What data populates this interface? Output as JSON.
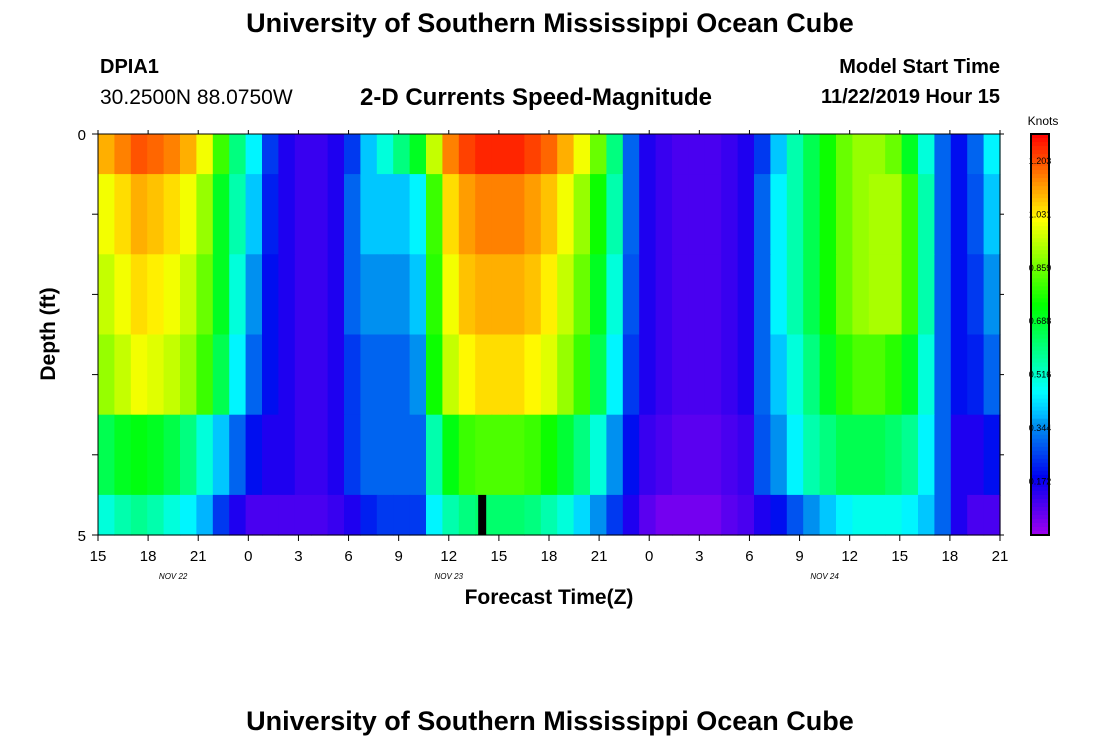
{
  "header": {
    "title": "University of Southern Mississippi Ocean Cube",
    "station_id": "DPIA1",
    "station_coords": "30.2500N 88.0750W",
    "start_label": "Model Start Time",
    "start_value": "11/22/2019 Hour 15"
  },
  "footer": {
    "title": "University of Southern Mississippi Ocean Cube"
  },
  "chart_data": {
    "type": "heatmap",
    "title": "2-D Currents Speed-Magnitude",
    "xlabel": "Forecast Time(Z)",
    "ylabel": "Depth (ft)",
    "xlim": [
      0,
      54
    ],
    "ylim": [
      0,
      5
    ],
    "x_tick_labels": [
      "15",
      "18",
      "21",
      "0",
      "3",
      "6",
      "9",
      "12",
      "15",
      "18",
      "21",
      "0",
      "3",
      "6",
      "9",
      "12",
      "15",
      "18",
      "21"
    ],
    "y_tick_labels": [
      "0",
      "5"
    ],
    "date_labels": [
      {
        "text": "NOV  22",
        "x": 4.5
      },
      {
        "text": "NOV  23",
        "x": 21
      },
      {
        "text": "NOV  24",
        "x": 43.5
      }
    ],
    "colorbar": {
      "unit": "Knots",
      "min": 0,
      "max": 1.29,
      "tick_labels": [
        "1.203",
        "1.031",
        "0.859",
        "0.688",
        "0.516",
        "0.344",
        "0.172"
      ],
      "tick_values": [
        1.203,
        1.031,
        0.859,
        0.688,
        0.516,
        0.344,
        0.172
      ]
    },
    "marker": {
      "x": 23,
      "depth_from": 4.5,
      "depth_to": 5
    },
    "depth_layers": [
      0.25,
      1,
      2,
      3,
      4,
      4.75
    ],
    "layer_bounds": [
      0,
      0.5,
      1.5,
      2.5,
      3.5,
      4.5,
      5
    ],
    "speed_rows": [
      [
        1.1,
        1.15,
        1.2,
        1.18,
        1.15,
        1.1,
        1.0,
        0.8,
        0.6,
        0.45,
        0.25,
        0.15,
        0.12,
        0.12,
        0.15,
        0.25,
        0.4,
        0.5,
        0.6,
        0.7,
        0.95,
        1.15,
        1.22,
        1.25,
        1.25,
        1.25,
        1.22,
        1.18,
        1.1,
        1.0,
        0.85,
        0.6,
        0.3,
        0.15,
        0.12,
        0.1,
        0.1,
        0.1,
        0.12,
        0.15,
        0.25,
        0.4,
        0.55,
        0.65,
        0.75,
        0.85,
        0.9,
        0.9,
        0.85,
        0.7,
        0.5,
        0.3,
        0.2,
        0.3,
        0.45
      ],
      [
        1.0,
        1.05,
        1.1,
        1.08,
        1.05,
        1.0,
        0.9,
        0.7,
        0.55,
        0.4,
        0.22,
        0.15,
        0.12,
        0.12,
        0.15,
        0.3,
        0.4,
        0.4,
        0.4,
        0.45,
        0.8,
        1.05,
        1.12,
        1.15,
        1.15,
        1.15,
        1.12,
        1.08,
        1.0,
        0.9,
        0.75,
        0.55,
        0.3,
        0.15,
        0.12,
        0.1,
        0.1,
        0.1,
        0.12,
        0.15,
        0.3,
        0.45,
        0.55,
        0.65,
        0.75,
        0.85,
        0.9,
        0.92,
        0.92,
        0.8,
        0.55,
        0.3,
        0.2,
        0.28,
        0.4
      ],
      [
        0.95,
        1.0,
        1.05,
        1.03,
        1.0,
        0.95,
        0.85,
        0.7,
        0.5,
        0.35,
        0.2,
        0.15,
        0.12,
        0.12,
        0.15,
        0.3,
        0.35,
        0.35,
        0.35,
        0.4,
        0.78,
        1.0,
        1.08,
        1.1,
        1.1,
        1.1,
        1.08,
        1.03,
        0.95,
        0.85,
        0.7,
        0.5,
        0.28,
        0.15,
        0.12,
        0.1,
        0.1,
        0.1,
        0.12,
        0.15,
        0.3,
        0.45,
        0.55,
        0.65,
        0.75,
        0.85,
        0.9,
        0.92,
        0.92,
        0.8,
        0.55,
        0.3,
        0.2,
        0.25,
        0.35
      ],
      [
        0.9,
        0.95,
        1.0,
        0.98,
        0.95,
        0.9,
        0.8,
        0.65,
        0.45,
        0.3,
        0.2,
        0.15,
        0.12,
        0.12,
        0.15,
        0.25,
        0.3,
        0.3,
        0.3,
        0.35,
        0.75,
        0.95,
        1.02,
        1.05,
        1.05,
        1.05,
        1.02,
        0.98,
        0.9,
        0.8,
        0.65,
        0.45,
        0.25,
        0.15,
        0.12,
        0.1,
        0.1,
        0.1,
        0.12,
        0.15,
        0.3,
        0.4,
        0.5,
        0.6,
        0.7,
        0.78,
        0.82,
        0.82,
        0.78,
        0.7,
        0.5,
        0.3,
        0.2,
        0.22,
        0.3
      ],
      [
        0.65,
        0.7,
        0.72,
        0.7,
        0.66,
        0.6,
        0.5,
        0.4,
        0.3,
        0.2,
        0.15,
        0.15,
        0.12,
        0.12,
        0.15,
        0.25,
        0.3,
        0.3,
        0.3,
        0.3,
        0.55,
        0.72,
        0.8,
        0.82,
        0.82,
        0.82,
        0.8,
        0.75,
        0.68,
        0.6,
        0.5,
        0.35,
        0.2,
        0.12,
        0.1,
        0.08,
        0.08,
        0.08,
        0.1,
        0.12,
        0.28,
        0.35,
        0.45,
        0.55,
        0.6,
        0.65,
        0.65,
        0.65,
        0.62,
        0.58,
        0.45,
        0.3,
        0.15,
        0.15,
        0.2
      ],
      [
        0.5,
        0.55,
        0.58,
        0.55,
        0.5,
        0.45,
        0.38,
        0.25,
        0.15,
        0.1,
        0.1,
        0.1,
        0.1,
        0.1,
        0.12,
        0.15,
        0.22,
        0.25,
        0.25,
        0.25,
        0.45,
        0.55,
        0.6,
        0.62,
        0.62,
        0.62,
        0.6,
        0.55,
        0.5,
        0.42,
        0.35,
        0.25,
        0.15,
        0.08,
        0.05,
        0.05,
        0.05,
        0.05,
        0.08,
        0.1,
        0.15,
        0.2,
        0.28,
        0.35,
        0.4,
        0.45,
        0.48,
        0.48,
        0.48,
        0.45,
        0.4,
        0.3,
        0.15,
        0.1,
        0.1
      ]
    ]
  }
}
